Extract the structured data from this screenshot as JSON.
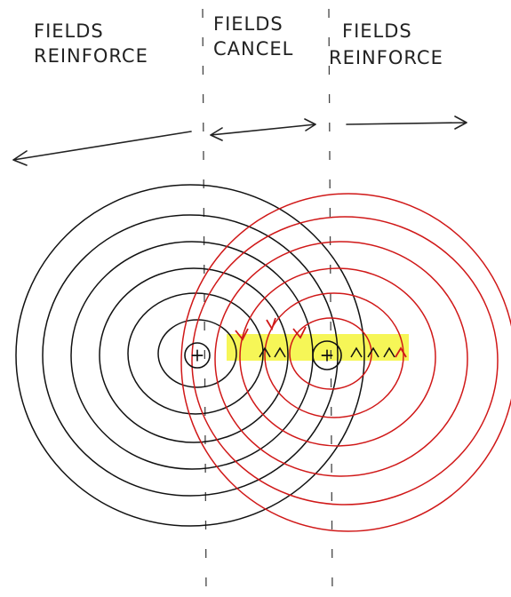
{
  "labels": [
    {
      "lines": [
        "FIELDS",
        "REINFORCE"
      ]
    },
    {
      "lines": [
        "FIELDS",
        "CANCEL"
      ]
    },
    {
      "lines": [
        "FIELDS",
        "REINFORCE"
      ]
    }
  ],
  "charges": [
    "+",
    "+"
  ]
}
